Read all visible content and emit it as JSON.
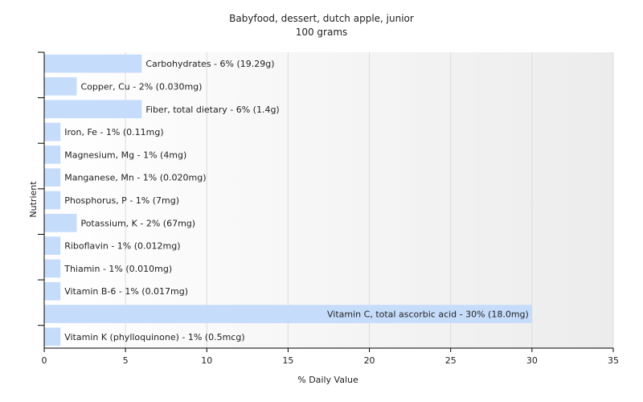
{
  "chart_data": {
    "type": "bar",
    "orientation": "horizontal",
    "title": "Babyfood, dessert, dutch apple, junior",
    "subtitle": "100 grams",
    "xlabel": "% Daily Value",
    "ylabel": "Nutrient",
    "xlim": [
      0,
      35
    ],
    "xticks": [
      0,
      5,
      10,
      15,
      20,
      25,
      30,
      35
    ],
    "grid": true,
    "bar_color": "#c6dcfb",
    "categories": [
      "Carbohydrates",
      "Copper, Cu",
      "Fiber, total dietary",
      "Iron, Fe",
      "Magnesium, Mg",
      "Manganese, Mn",
      "Phosphorus, P",
      "Potassium, K",
      "Riboflavin",
      "Thiamin",
      "Vitamin B-6",
      "Vitamin C, total ascorbic acid",
      "Vitamin K (phylloquinone)"
    ],
    "values": [
      6,
      2,
      6,
      1,
      1,
      1,
      1,
      2,
      1,
      1,
      1,
      30,
      1
    ],
    "labels": [
      "Carbohydrates - 6% (19.29g)",
      "Copper, Cu - 2% (0.030mg)",
      "Fiber, total dietary - 6% (1.4g)",
      "Iron, Fe - 1% (0.11mg)",
      "Magnesium, Mg - 1% (4mg)",
      "Manganese, Mn - 1% (0.020mg)",
      "Phosphorus, P - 1% (7mg)",
      "Potassium, K - 2% (67mg)",
      "Riboflavin - 1% (0.012mg)",
      "Thiamin - 1% (0.010mg)",
      "Vitamin B-6 - 1% (0.017mg)",
      "Vitamin C, total ascorbic acid - 30% (18.0mg)",
      "Vitamin K (phylloquinone) - 1% (0.5mcg)"
    ]
  }
}
